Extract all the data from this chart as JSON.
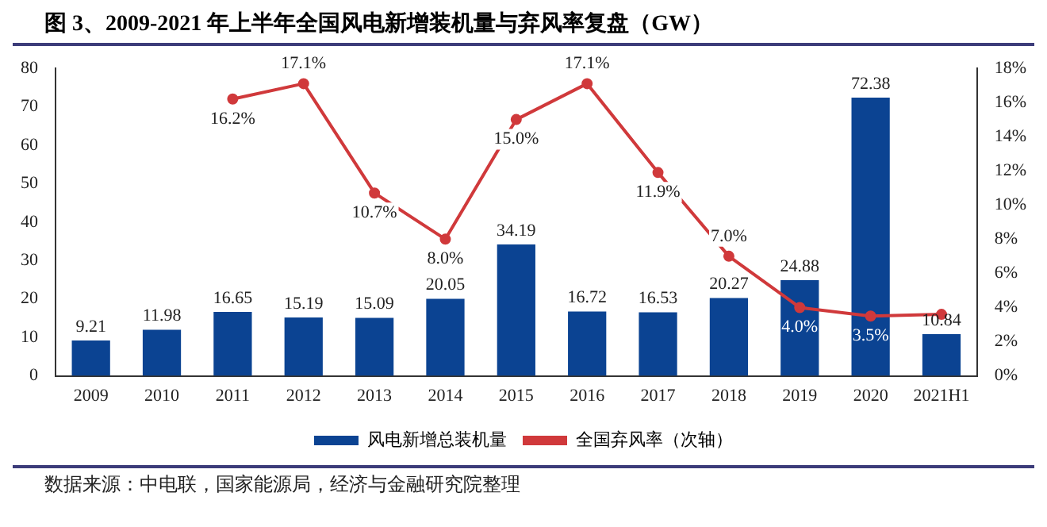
{
  "chart_data": {
    "type": "bar",
    "title": "图 3、2009-2021 年上半年全国风电新增装机量与弃风率复盘（GW）",
    "categories": [
      "2009",
      "2010",
      "2011",
      "2012",
      "2013",
      "2014",
      "2015",
      "2016",
      "2017",
      "2018",
      "2019",
      "2020",
      "2021H1"
    ],
    "series": [
      {
        "name": "风电新增总装机量",
        "color": "#0b4392",
        "values": [
          9.21,
          11.98,
          16.65,
          15.19,
          15.09,
          20.05,
          34.19,
          16.72,
          16.53,
          20.27,
          24.88,
          72.38,
          10.84
        ]
      },
      {
        "name": "全国弃风率（次轴）",
        "type": "line",
        "axis": "y2",
        "color": "#d0393b",
        "marker": "circle",
        "values": [
          null,
          null,
          16.2,
          17.1,
          10.7,
          8.0,
          15.0,
          17.1,
          11.9,
          7.0,
          4.0,
          3.5,
          3.6
        ],
        "value_labels": [
          null,
          null,
          "16.2%",
          "17.1%",
          "10.7%",
          "8.0%",
          "15.0%",
          "17.1%",
          "11.9%",
          "7.0%",
          "4.0%",
          "3.5%",
          null
        ]
      }
    ],
    "data_labels": true,
    "ylim": [
      0,
      80
    ],
    "yticks": [
      0,
      10,
      20,
      30,
      40,
      50,
      60,
      70,
      80
    ],
    "y2lim": [
      0,
      18
    ],
    "y2ticks": [
      {
        "value": 0,
        "label": "0%"
      },
      {
        "value": 2,
        "label": "2%"
      },
      {
        "value": 4,
        "label": "4%"
      },
      {
        "value": 6,
        "label": "6%"
      },
      {
        "value": 8,
        "label": "8%"
      },
      {
        "value": 10,
        "label": "10%"
      },
      {
        "value": 12,
        "label": "12%"
      },
      {
        "value": 14,
        "label": "14%"
      },
      {
        "value": 16,
        "label": "16%"
      },
      {
        "value": 18,
        "label": "18%"
      }
    ],
    "grid": false,
    "legend": "bottom",
    "annotations": [
      "数据来源：中电联，国家能源局，经济与金融研究院整理"
    ]
  }
}
